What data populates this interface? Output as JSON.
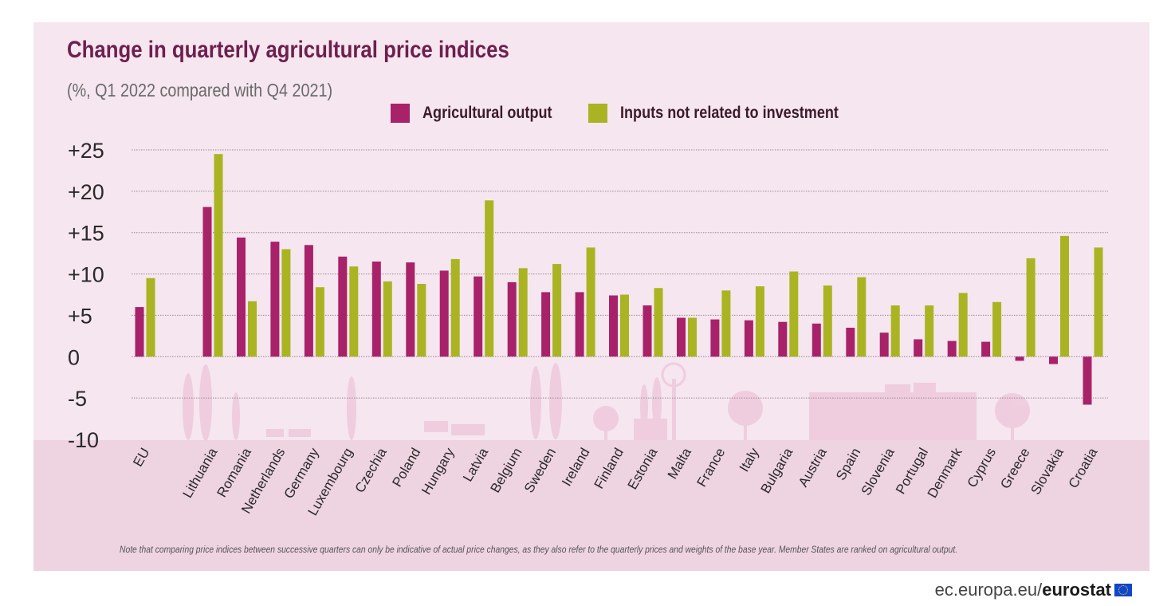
{
  "header": {
    "title": "Change in quarterly agricultural price indices",
    "subtitle": "(%, Q1 2022 compared with Q4 2021)"
  },
  "legend": {
    "output_label": "Agricultural output",
    "inputs_label": "Inputs not related to investment"
  },
  "colors": {
    "output": "#a8226a",
    "inputs": "#aab422",
    "title": "#6e1f4e"
  },
  "chart_data": {
    "type": "bar",
    "title": "Change in quarterly agricultural price indices",
    "subtitle": "(%, Q1 2022 compared with Q4 2021)",
    "xlabel": "",
    "ylabel": "",
    "ylim": [
      -10,
      25
    ],
    "yticks": [
      25,
      20,
      15,
      10,
      5,
      0,
      -5,
      -10
    ],
    "ytick_labels": [
      "+25",
      "+20",
      "+15",
      "+10",
      "+5",
      "0",
      "-5",
      "-10"
    ],
    "grid": true,
    "legend_position": "top",
    "categories": [
      "EU",
      "Lithuania",
      "Romania",
      "Netherlands",
      "Germany",
      "Luxembourg",
      "Czechia",
      "Poland",
      "Hungary",
      "Latvia",
      "Belgium",
      "Sweden",
      "Ireland",
      "Finland",
      "Estonia",
      "Malta",
      "France",
      "Italy",
      "Bulgaria",
      "Austria",
      "Spain",
      "Slovenia",
      "Portugal",
      "Denmark",
      "Cyprus",
      "Greece",
      "Slovakia",
      "Croatia"
    ],
    "series": [
      {
        "name": "Agricultural output",
        "values": [
          6.0,
          18.1,
          14.4,
          13.9,
          13.5,
          12.1,
          11.5,
          11.4,
          10.4,
          9.7,
          9.0,
          7.8,
          7.8,
          7.4,
          6.2,
          4.7,
          4.5,
          4.4,
          4.2,
          4.0,
          3.5,
          2.9,
          2.1,
          1.9,
          1.8,
          -0.5,
          -0.9,
          -5.8
        ]
      },
      {
        "name": "Inputs not related to investment",
        "values": [
          9.5,
          24.5,
          6.7,
          13.0,
          8.4,
          10.9,
          9.1,
          8.8,
          11.8,
          18.9,
          10.7,
          11.2,
          13.2,
          7.5,
          8.3,
          4.7,
          8.0,
          8.5,
          10.3,
          8.6,
          9.6,
          6.2,
          6.2,
          7.7,
          6.6,
          11.9,
          14.6,
          13.2
        ]
      }
    ]
  },
  "footnote": "Note that comparing price indices between successive quarters can only be indicative of actual price changes, as they also refer to the quarterly prices and weights of the base year.   Member States are ranked on agricultural output.",
  "source": {
    "domain": "ec.europa.eu/",
    "brand": "eurostat"
  }
}
